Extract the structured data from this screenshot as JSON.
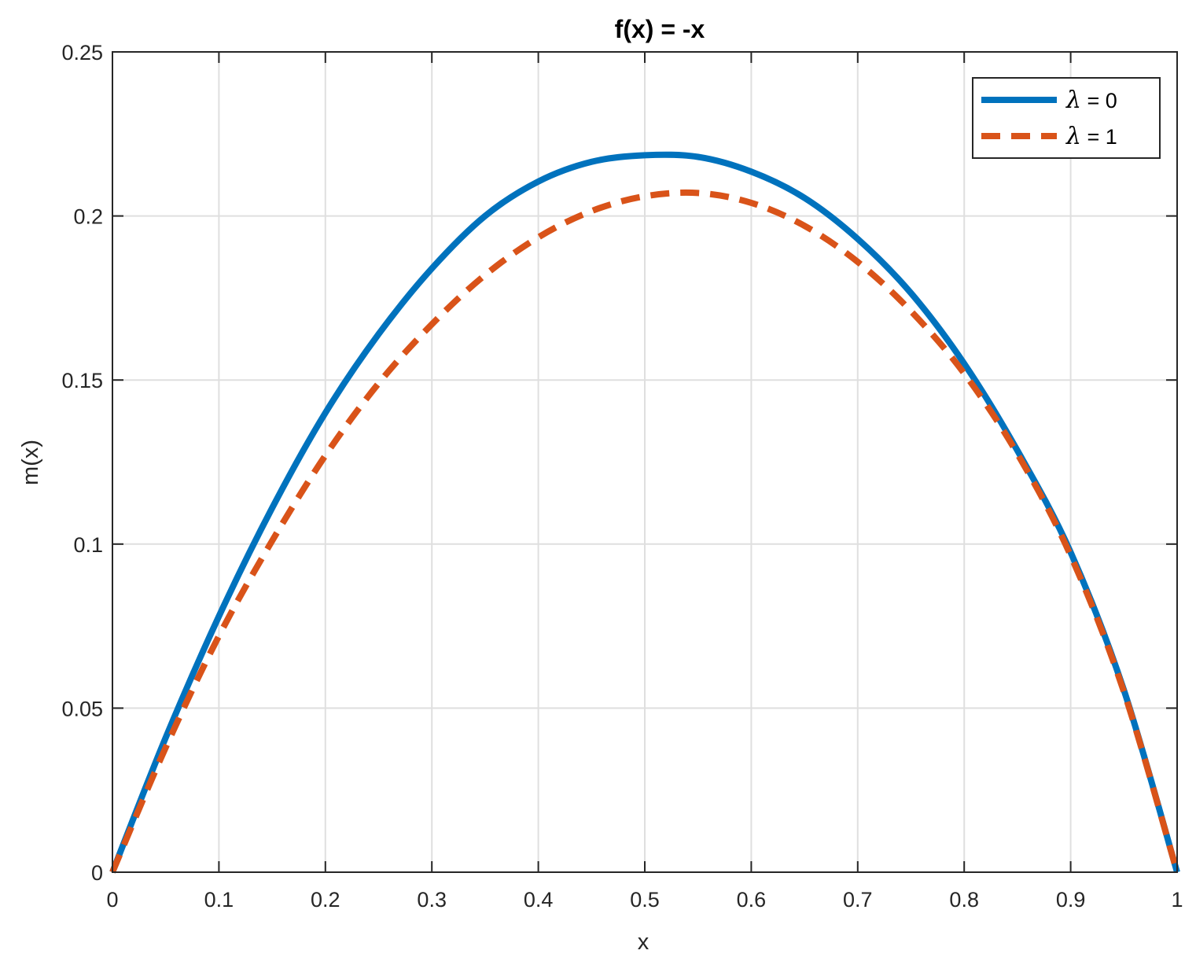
{
  "chart_data": {
    "type": "line",
    "title": "f(x) = -x",
    "xlabel": "x",
    "ylabel": "m(x)",
    "xlim": [
      0,
      1
    ],
    "ylim": [
      0,
      0.25
    ],
    "xticks": [
      0,
      0.1,
      0.2,
      0.3,
      0.4,
      0.5,
      0.6,
      0.7,
      0.8,
      0.9,
      1
    ],
    "xtick_labels": [
      "0",
      "0.1",
      "0.2",
      "0.3",
      "0.4",
      "0.5",
      "0.6",
      "0.7",
      "0.8",
      "0.9",
      "1"
    ],
    "yticks": [
      0,
      0.05,
      0.1,
      0.15,
      0.2,
      0.25
    ],
    "ytick_labels": [
      "0",
      "0.05",
      "0.1",
      "0.15",
      "0.2",
      "0.25"
    ],
    "grid": true,
    "legend_position": "top-right",
    "series": [
      {
        "name": "λ = 0",
        "color": "#0072BD",
        "style": "solid",
        "x": [
          0,
          0.05,
          0.1,
          0.15,
          0.2,
          0.25,
          0.3,
          0.35,
          0.4,
          0.45,
          0.5,
          0.55,
          0.6,
          0.65,
          0.7,
          0.75,
          0.8,
          0.85,
          0.9,
          0.95,
          1
        ],
        "y": [
          0,
          0.041,
          0.078,
          0.111,
          0.14,
          0.164,
          0.184,
          0.2,
          0.2105,
          0.2165,
          0.2185,
          0.218,
          0.2135,
          0.2055,
          0.193,
          0.1765,
          0.155,
          0.1285,
          0.0975,
          0.0555,
          0
        ]
      },
      {
        "name": "λ = 1",
        "color": "#D95319",
        "style": "dashed",
        "x": [
          0,
          0.05,
          0.1,
          0.15,
          0.2,
          0.25,
          0.3,
          0.35,
          0.4,
          0.45,
          0.5,
          0.55,
          0.6,
          0.65,
          0.7,
          0.75,
          0.8,
          0.85,
          0.9,
          0.95,
          1
        ],
        "y": [
          0,
          0.038,
          0.072,
          0.101,
          0.127,
          0.149,
          0.167,
          0.182,
          0.1935,
          0.2015,
          0.206,
          0.207,
          0.204,
          0.197,
          0.186,
          0.171,
          0.152,
          0.1275,
          0.0965,
          0.055,
          0
        ]
      }
    ]
  }
}
